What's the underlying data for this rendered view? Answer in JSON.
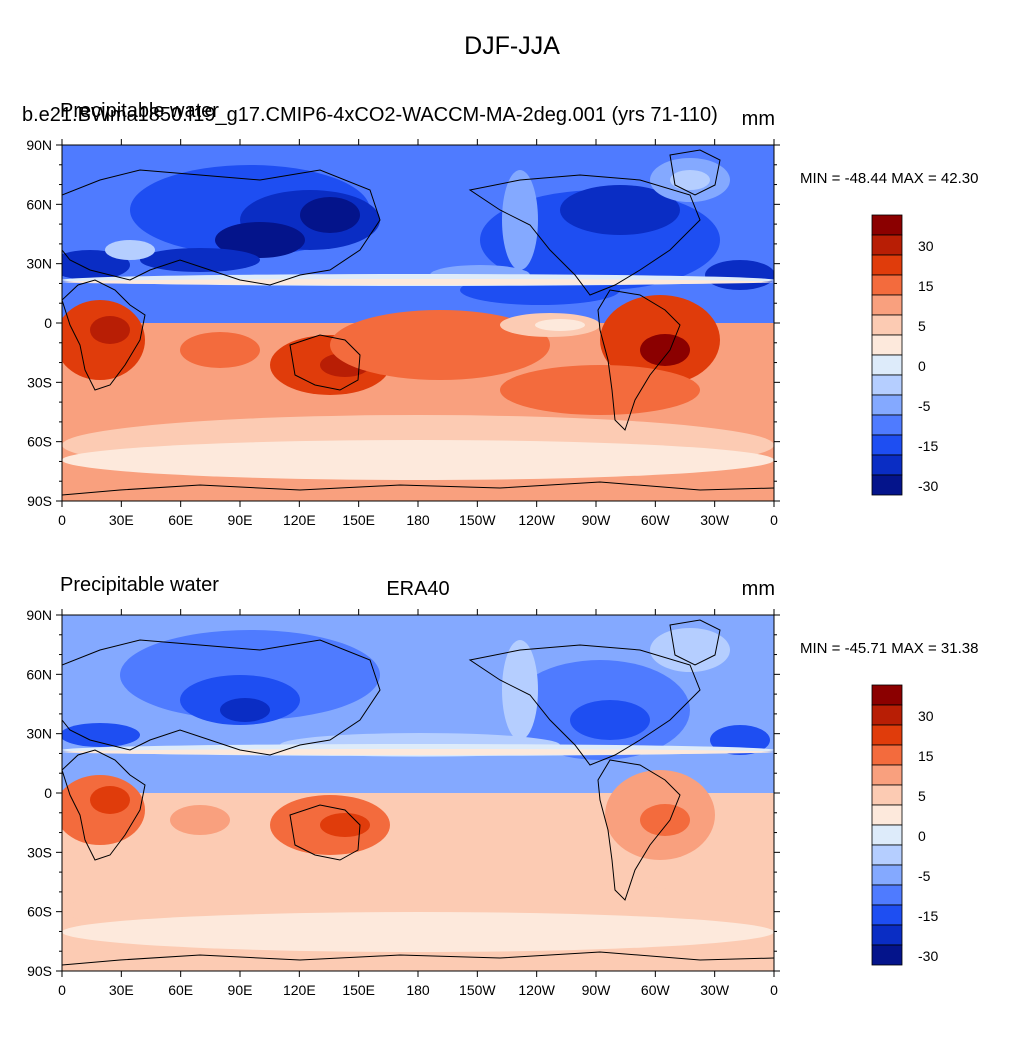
{
  "title": "DJF-JJA",
  "colors": {
    "levels": [
      30,
      15,
      5,
      0,
      -5,
      -15,
      -30
    ],
    "palette": [
      "#8b0000",
      "#b81e05",
      "#e03c0b",
      "#f36b3d",
      "#f9a07e",
      "#fccbb3",
      "#fde9dc",
      "#ddebfa",
      "#b5ceff",
      "#84a9ff",
      "#4f7bff",
      "#1e4ef2",
      "#0a2dc4",
      "#04148b"
    ]
  },
  "panels": [
    {
      "id": "model",
      "left_label": "Precipitable water",
      "center_label": "b.e21.BWma1850.f19_g17.CMIP6-4xCO2-WACCM-MA-2deg.001 (yrs 71-110)",
      "right_label": "mm",
      "min_max": "MIN = -48.44 MAX =  42.30"
    },
    {
      "id": "obs",
      "left_label": "Precipitable water",
      "center_label": "ERA40",
      "right_label": "mm",
      "min_max": "MIN = -45.71 MAX =  31.38"
    }
  ],
  "axes": {
    "lat_labels": [
      "90N",
      "60N",
      "30N",
      "0",
      "30S",
      "60S",
      "90S"
    ],
    "lon_labels": [
      "0",
      "30E",
      "60E",
      "90E",
      "120E",
      "150E",
      "180",
      "150W",
      "120W",
      "90W",
      "60W",
      "30W",
      "0"
    ]
  },
  "colorbar_labels": [
    "30",
    "15",
    "5",
    "0",
    "-5",
    "-15",
    "-30"
  ]
}
